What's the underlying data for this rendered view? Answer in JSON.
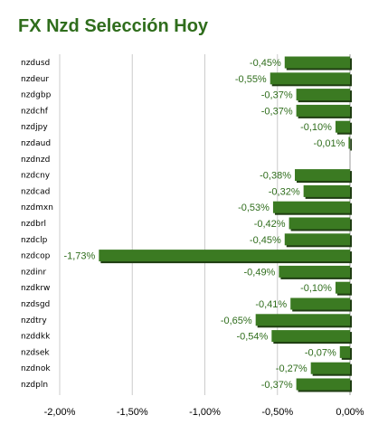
{
  "title": "FX Nzd Selección Hoy",
  "colors": {
    "bar": "#3b7a22",
    "bar_shadow": "#1f3d12",
    "title": "#2f6d1c",
    "value_label": "#2f6d1c",
    "grid": "#cccccc"
  },
  "chart_data": {
    "type": "bar",
    "orientation": "horizontal",
    "title": "FX Nzd Selección Hoy",
    "xlabel": "",
    "ylabel": "",
    "xlim": [
      -2.0,
      0.0
    ],
    "grid": true,
    "legend": "none",
    "categories": [
      "nzdusd",
      "nzdeur",
      "nzdgbp",
      "nzdchf",
      "nzdjpy",
      "nzdaud",
      "nzdnzd",
      "nzdcny",
      "nzdcad",
      "nzdmxn",
      "nzdbrl",
      "nzdclp",
      "nzdcop",
      "nzdinr",
      "nzdkrw",
      "nzdsgd",
      "nzdtry",
      "nzddkk",
      "nzdsek",
      "nzdnok",
      "nzdpln"
    ],
    "values": [
      -0.45,
      -0.55,
      -0.37,
      -0.37,
      -0.1,
      -0.01,
      null,
      -0.38,
      -0.32,
      -0.53,
      -0.42,
      -0.45,
      -1.73,
      -0.49,
      -0.1,
      -0.41,
      -0.65,
      -0.54,
      -0.07,
      -0.27,
      -0.37
    ],
    "value_labels": [
      "-0,45%",
      "-0,55%",
      "-0,37%",
      "-0,37%",
      "-0,10%",
      "-0,01%",
      "",
      "-0,38%",
      "-0,32%",
      "-0,53%",
      "-0,42%",
      "-0,45%",
      "-1,73%",
      "-0,49%",
      "-0,10%",
      "-0,41%",
      "-0,65%",
      "-0,54%",
      "-0,07%",
      "-0,27%",
      "-0,37%"
    ],
    "x_ticks": [
      -2.0,
      -1.5,
      -1.0,
      -0.5,
      0.0
    ],
    "x_tick_labels": [
      "-2,00%",
      "-1,50%",
      "-1,00%",
      "-0,50%",
      "0,00%"
    ]
  }
}
